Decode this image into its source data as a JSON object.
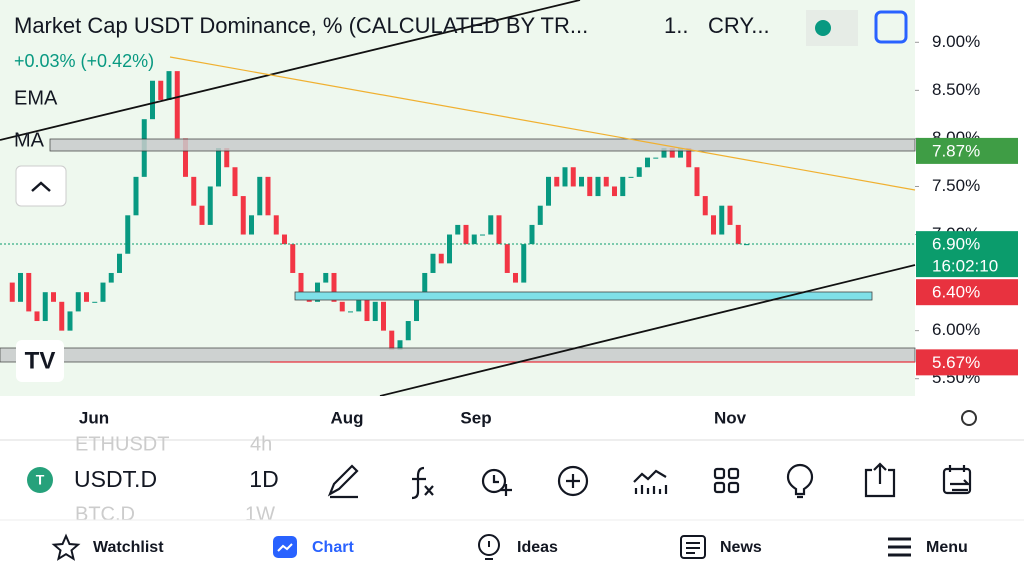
{
  "header": {
    "title": "Market Cap USDT Dominance, % (CALCULATED BY TR...",
    "interval": "1..",
    "exchange": "CRY...",
    "change": "+0.03% (+0.42%)",
    "indicators": [
      "EMA",
      "MA"
    ]
  },
  "chart_data": {
    "type": "candlestick",
    "x_labels": [
      "Jun",
      "Aug",
      "Sep",
      "Nov"
    ],
    "closes": [
      6.5,
      6.3,
      6.6,
      6.2,
      6.1,
      6.4,
      6.3,
      6.0,
      6.2,
      6.4,
      6.3,
      6.3,
      6.5,
      6.6,
      6.8,
      7.2,
      7.6,
      8.2,
      8.6,
      8.4,
      8.7,
      8.0,
      7.6,
      7.3,
      7.1,
      7.5,
      7.9,
      7.7,
      7.4,
      7.0,
      7.2,
      7.6,
      7.2,
      7.0,
      6.9,
      6.6,
      6.4,
      6.3,
      6.5,
      6.6,
      6.3,
      6.2,
      6.2,
      6.4,
      6.1,
      6.3,
      6.0,
      5.8,
      5.9,
      6.1,
      6.4,
      6.6,
      6.8,
      6.7,
      7.0,
      7.1,
      6.9,
      7.0,
      7.0,
      7.2,
      6.9,
      6.6,
      6.5,
      6.9,
      7.1,
      7.3,
      7.6,
      7.5,
      7.7,
      7.5,
      7.6,
      7.4,
      7.6,
      7.5,
      7.4,
      7.6,
      7.6,
      7.7,
      7.8,
      7.8,
      7.9,
      7.8,
      7.9,
      7.7,
      7.4,
      7.2,
      7.0,
      7.3,
      7.1,
      6.9,
      6.9
    ],
    "up_color": "#089981",
    "down_color": "#f23645",
    "ylim": [
      5.32,
      9.44
    ],
    "yticks": [
      {
        "value": 9,
        "label": "9.00%"
      },
      {
        "value": 8.5,
        "label": "8.50%"
      },
      {
        "value": 8,
        "label": "8.00%"
      },
      {
        "value": 7.5,
        "label": "7.50%"
      },
      {
        "value": 7,
        "label": "7.00%"
      },
      {
        "value": 6,
        "label": "6.00%"
      },
      {
        "value": 5.5,
        "label": "5.50%"
      }
    ],
    "price_tags": [
      {
        "value": 7.87,
        "label": "7.87%",
        "color": "#3f9d45"
      },
      {
        "value": 6.9,
        "label": "6.90%",
        "time": "16:02:10",
        "color": "#0b9c6c"
      },
      {
        "value": 6.4,
        "label": "6.40%",
        "color": "#e8323f"
      },
      {
        "value": 5.67,
        "label": "5.67%",
        "color": "#e8323f"
      }
    ]
  },
  "toolbar": {
    "symbol": "USDT.D",
    "interval": "1D",
    "prev_symbol": "ETHUSDT",
    "prev_interval": "4h",
    "next_symbol": "BTC.D",
    "next_interval": "1W"
  },
  "nav": [
    "Watchlist",
    "Chart",
    "Ideas",
    "News",
    "Menu"
  ]
}
